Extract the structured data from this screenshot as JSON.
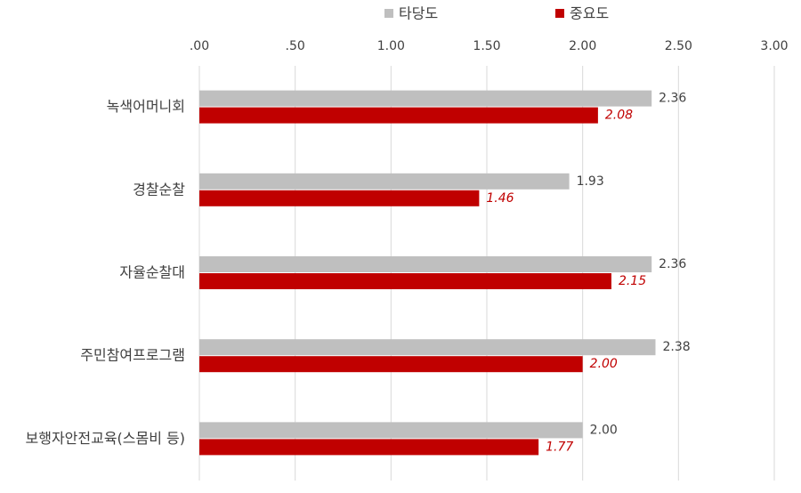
{
  "chart_data": {
    "type": "bar",
    "orientation": "horizontal",
    "categories": [
      "녹색어머니회",
      "경찰순찰",
      "자율순찰대",
      "주민참여프로그램",
      "보행자안전교육(스몸비 등)"
    ],
    "series": [
      {
        "name": "타당도",
        "color": "#bfbfbf",
        "values": [
          2.36,
          1.93,
          2.36,
          2.38,
          2.0
        ],
        "value_labels": [
          "2.36",
          "1.93",
          "2.36",
          "2.38",
          "2.00"
        ]
      },
      {
        "name": "중요도",
        "color": "#c00000",
        "values": [
          2.08,
          1.46,
          2.15,
          2.0,
          1.77
        ],
        "value_labels": [
          "2.08",
          "1.46",
          "2.15",
          "2.00",
          "1.77"
        ]
      }
    ],
    "xlim": [
      0,
      3
    ],
    "xticks": [
      {
        "value": 0,
        "label": ".00"
      },
      {
        "value": 0.5,
        "label": ".50"
      },
      {
        "value": 1,
        "label": "1.00"
      },
      {
        "value": 1.5,
        "label": "1.50"
      },
      {
        "value": 2,
        "label": "2.00"
      },
      {
        "value": 2.5,
        "label": "2.50"
      },
      {
        "value": 3,
        "label": "3.00"
      }
    ],
    "grid": true,
    "legend": "top"
  }
}
